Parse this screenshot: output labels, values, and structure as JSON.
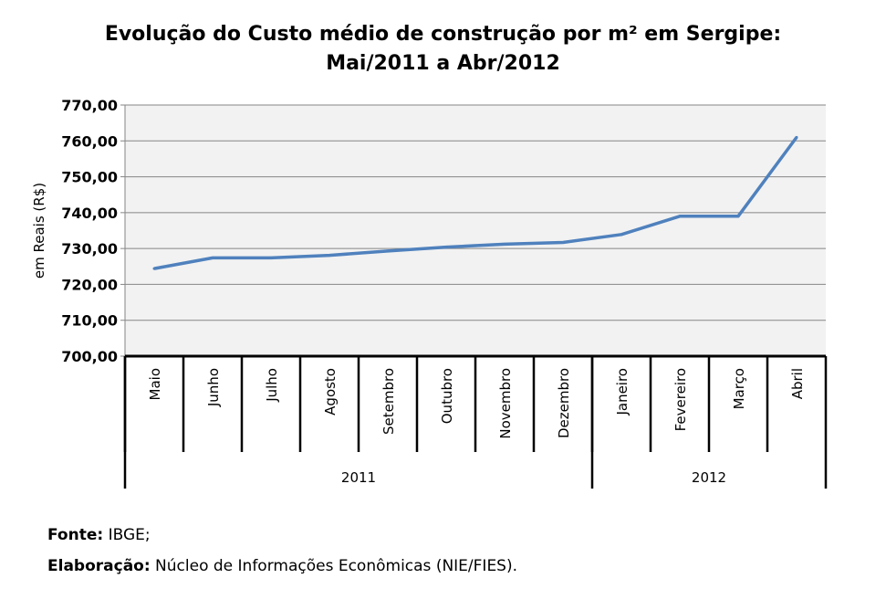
{
  "chart_data": {
    "type": "line",
    "title": "Evolução do Custo médio de construção por m² em Sergipe:",
    "subtitle": "Mai/2011 a Abr/2012",
    "ylabel": "em Reais (R$)",
    "xlabel": "",
    "ylim": [
      700,
      770
    ],
    "yticks": [
      "700,00",
      "710,00",
      "720,00",
      "730,00",
      "740,00",
      "750,00",
      "760,00",
      "770,00"
    ],
    "grid": true,
    "categories": [
      "Maio",
      "Junho",
      "Julho",
      "Agosto",
      "Setembro",
      "Outubro",
      "Novembro",
      "Dezembro",
      "Janeiro",
      "Fevereiro",
      "Março",
      "Abril"
    ],
    "groups": [
      {
        "label": "2011",
        "count": 8
      },
      {
        "label": "2012",
        "count": 4
      }
    ],
    "series": [
      {
        "values": [
          724.4,
          727.4,
          727.4,
          728.1,
          729.3,
          730.4,
          731.2,
          731.7,
          733.9,
          739.0,
          739.0,
          761.0
        ],
        "color": "#4F81BD"
      }
    ],
    "plot_background": "#F2F2F2"
  },
  "source": {
    "label": "Fonte:",
    "text": " IBGE;"
  },
  "elaboration": {
    "label": "Elaboração:",
    "text": " Núcleo de Informações Econômicas (NIE/FIES)."
  }
}
